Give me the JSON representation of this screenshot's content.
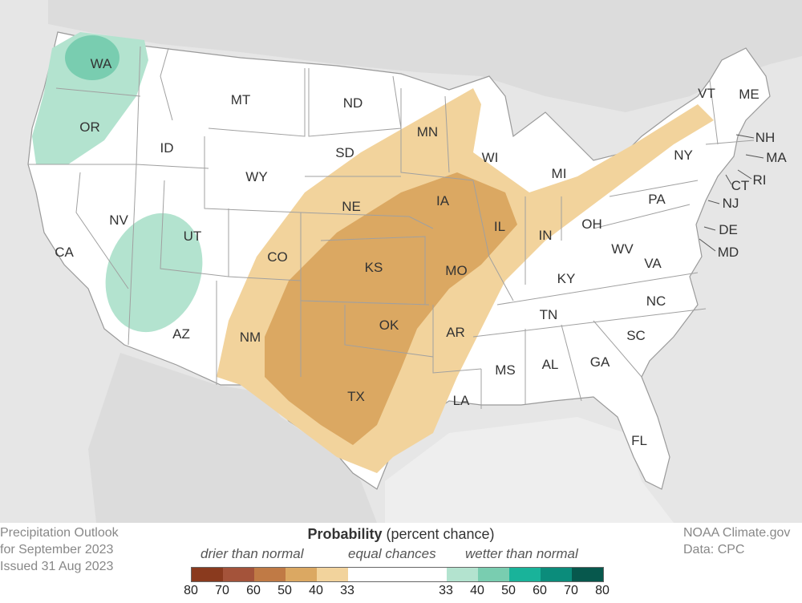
{
  "title_block": {
    "line1": "Precipitation Outlook",
    "line2": "for September 2023",
    "line3": "Issued 31 Aug 2023"
  },
  "credits": {
    "line1": "NOAA Climate.gov",
    "line2": "Data: CPC"
  },
  "legend": {
    "title_bold": "Probability",
    "title_rest": " (percent chance)",
    "drier": "drier than normal",
    "equal": "equal chances",
    "wetter": "wetter than normal",
    "drier_colors": [
      "#8a3a1e",
      "#a4533a",
      "#c07a45",
      "#dba862",
      "#f2d39c"
    ],
    "equal_color": "#ffffff",
    "wetter_colors": [
      "#b3e3cf",
      "#79cdb0",
      "#19b39a",
      "#0b8c7b",
      "#07584d"
    ],
    "ticks": [
      "80",
      "70",
      "60",
      "50",
      "40",
      "33",
      "33",
      "40",
      "50",
      "60",
      "70",
      "80"
    ]
  },
  "states": [
    {
      "abbr": "WA"
    },
    {
      "abbr": "OR"
    },
    {
      "abbr": "CA"
    },
    {
      "abbr": "ID"
    },
    {
      "abbr": "NV"
    },
    {
      "abbr": "MT"
    },
    {
      "abbr": "WY"
    },
    {
      "abbr": "UT"
    },
    {
      "abbr": "AZ"
    },
    {
      "abbr": "CO"
    },
    {
      "abbr": "NM"
    },
    {
      "abbr": "ND"
    },
    {
      "abbr": "SD"
    },
    {
      "abbr": "NE"
    },
    {
      "abbr": "KS"
    },
    {
      "abbr": "OK"
    },
    {
      "abbr": "TX"
    },
    {
      "abbr": "MN"
    },
    {
      "abbr": "IA"
    },
    {
      "abbr": "MO"
    },
    {
      "abbr": "AR"
    },
    {
      "abbr": "LA"
    },
    {
      "abbr": "WI"
    },
    {
      "abbr": "IL"
    },
    {
      "abbr": "MI"
    },
    {
      "abbr": "IN"
    },
    {
      "abbr": "OH"
    },
    {
      "abbr": "KY"
    },
    {
      "abbr": "TN"
    },
    {
      "abbr": "MS"
    },
    {
      "abbr": "AL"
    },
    {
      "abbr": "GA"
    },
    {
      "abbr": "FL"
    },
    {
      "abbr": "SC"
    },
    {
      "abbr": "NC"
    },
    {
      "abbr": "VA"
    },
    {
      "abbr": "WV"
    },
    {
      "abbr": "PA"
    },
    {
      "abbr": "NY"
    },
    {
      "abbr": "VT"
    },
    {
      "abbr": "ME"
    },
    {
      "abbr": "NH"
    },
    {
      "abbr": "MA"
    },
    {
      "abbr": "RI"
    },
    {
      "abbr": "CT"
    },
    {
      "abbr": "NJ"
    },
    {
      "abbr": "DE"
    },
    {
      "abbr": "MD"
    }
  ]
}
